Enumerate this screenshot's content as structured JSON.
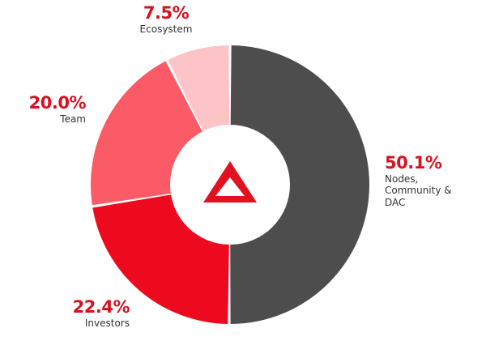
{
  "chart_data": {
    "type": "pie",
    "donut": true,
    "slices": [
      {
        "label": "Nodes, Community & DAC",
        "label_lines": [
          "Nodes,",
          "Community &",
          "DAC"
        ],
        "value": 50.1,
        "display": "50.1%",
        "color": "#4d4d4d"
      },
      {
        "label": "Investors",
        "label_lines": [
          "Investors"
        ],
        "value": 22.4,
        "display": "22.4%",
        "color": "#ee0a1e"
      },
      {
        "label": "Team",
        "label_lines": [
          "Team"
        ],
        "value": 20.0,
        "display": "20.0%",
        "color": "#fb5b66"
      },
      {
        "label": "Ecosystem",
        "label_lines": [
          "Ecosystem"
        ],
        "value": 7.5,
        "display": "7.5%",
        "color": "#fdc4c8"
      }
    ],
    "accent_color": "#d9101e",
    "center_icon": "triangle-logo-icon"
  }
}
